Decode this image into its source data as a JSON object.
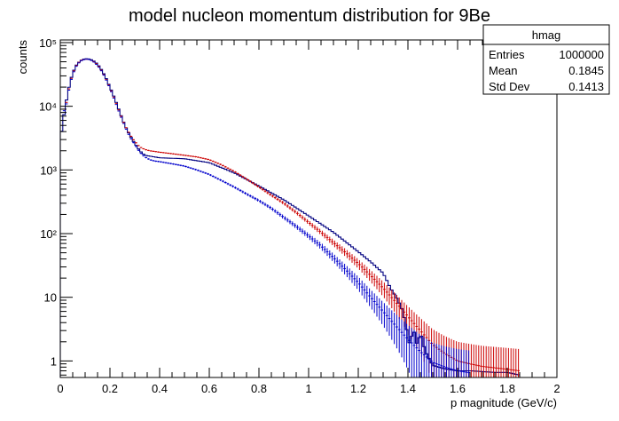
{
  "chart_data": {
    "type": "histogram",
    "title": "model nucleon momentum distribution for 9Be",
    "xlabel": "p magnitude (GeV/c)",
    "ylabel": "counts",
    "xlim": [
      0,
      2
    ],
    "ylim": [
      0.55,
      110000
    ],
    "yscale": "log",
    "bin_width": 0.01,
    "x_ticks": [
      "0",
      "0.2",
      "0.4",
      "0.6",
      "0.8",
      "1",
      "1.2",
      "1.4",
      "1.6",
      "1.8",
      "2"
    ],
    "y_ticks": [
      {
        "value": 1,
        "label": "1"
      },
      {
        "value": 10,
        "label": "10"
      },
      {
        "value": 100,
        "label": "10²"
      },
      {
        "value": 1000,
        "label": "10³"
      },
      {
        "value": 10000,
        "label": "10⁴"
      },
      {
        "value": 100000,
        "label": "10⁵"
      }
    ],
    "stats_box": {
      "name": "hmag",
      "rows": [
        {
          "label": "Entries",
          "value": "1000000"
        },
        {
          "label": "Mean",
          "value": "0.1845"
        },
        {
          "label": "Std Dev",
          "value": "0.1413"
        }
      ]
    },
    "series": [
      {
        "style": "step",
        "color": "#000080",
        "x": [
          0.0,
          0.02,
          0.04,
          0.06,
          0.08,
          0.1,
          0.12,
          0.14,
          0.16,
          0.18,
          0.2,
          0.22,
          0.24,
          0.26,
          0.28,
          0.3,
          0.32,
          0.34,
          0.4,
          0.5,
          0.6,
          0.7,
          0.8,
          0.9,
          1.0,
          1.1,
          1.2,
          1.25,
          1.3,
          1.33,
          1.36,
          1.38,
          1.4,
          1.41,
          1.42,
          1.43,
          1.44,
          1.45,
          1.46,
          1.47,
          1.48,
          1.5,
          1.55,
          1.6,
          1.65,
          1.7,
          1.75,
          1.8,
          1.85
        ],
        "y": [
          3000,
          10000,
          25000,
          42000,
          52000,
          56000,
          55000,
          50000,
          41000,
          30000,
          20000,
          13000,
          8000,
          5000,
          3500,
          2600,
          2000,
          1700,
          1550,
          1500,
          1300,
          900,
          560,
          340,
          190,
          105,
          52,
          36,
          24,
          14,
          9,
          6,
          2.5,
          1.5,
          4,
          2,
          1.8,
          3,
          2,
          1.4,
          1.2,
          0.85,
          0.75,
          0.7,
          0.7,
          0.68,
          0.66,
          0.66,
          0.6
        ]
      },
      {
        "style": "errorbar",
        "color": "#cc0000",
        "x": [
          0.02,
          0.04,
          0.06,
          0.08,
          0.1,
          0.12,
          0.14,
          0.16,
          0.18,
          0.2,
          0.22,
          0.24,
          0.26,
          0.28,
          0.3,
          0.32,
          0.34,
          0.36,
          0.38,
          0.4,
          0.45,
          0.5,
          0.55,
          0.6,
          0.65,
          0.7,
          0.75,
          0.8,
          0.85,
          0.9,
          0.95,
          1.0,
          1.05,
          1.1,
          1.15,
          1.2,
          1.25,
          1.3,
          1.35,
          1.4,
          1.45,
          1.5,
          1.55,
          1.6,
          1.65,
          1.7,
          1.75,
          1.8,
          1.85
        ],
        "y": [
          9000,
          24000,
          41000,
          52000,
          55000,
          54000,
          49000,
          40000,
          29000,
          19500,
          12500,
          7800,
          5000,
          3600,
          2800,
          2300,
          2100,
          2000,
          1950,
          1900,
          1800,
          1700,
          1600,
          1450,
          1200,
          950,
          720,
          540,
          400,
          300,
          215,
          150,
          105,
          72,
          50,
          34,
          22,
          14,
          8.5,
          5,
          3,
          1.8,
          1.3,
          1.0,
          0.9,
          0.82,
          0.78,
          0.74,
          0.7
        ]
      },
      {
        "style": "errorbar",
        "color": "#0000cc",
        "x": [
          0.02,
          0.04,
          0.06,
          0.08,
          0.1,
          0.12,
          0.14,
          0.16,
          0.18,
          0.2,
          0.22,
          0.24,
          0.26,
          0.28,
          0.3,
          0.32,
          0.34,
          0.36,
          0.38,
          0.4,
          0.45,
          0.5,
          0.55,
          0.6,
          0.65,
          0.7,
          0.75,
          0.8,
          0.85,
          0.9,
          0.95,
          1.0,
          1.05,
          1.1,
          1.15,
          1.2,
          1.25,
          1.3,
          1.35,
          1.4,
          1.45,
          1.5,
          1.55,
          1.6,
          1.65
        ],
        "y": [
          8500,
          23000,
          40000,
          51000,
          55000,
          54000,
          48000,
          39000,
          28500,
          19000,
          12000,
          7500,
          4800,
          3300,
          2500,
          1900,
          1600,
          1450,
          1380,
          1350,
          1250,
          1150,
          1000,
          850,
          680,
          540,
          420,
          330,
          250,
          180,
          130,
          92,
          64,
          42,
          27,
          17,
          10,
          6,
          3.6,
          2.2,
          1.4,
          0.95,
          0.8,
          0.7,
          0.65
        ]
      }
    ]
  }
}
